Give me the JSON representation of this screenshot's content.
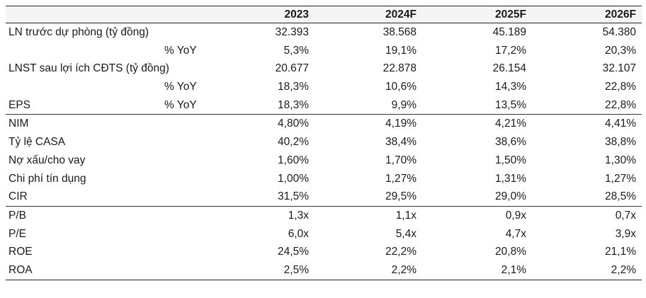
{
  "table": {
    "headers": [
      "2023",
      "2024F",
      "2025F",
      "2026F"
    ],
    "rows": [
      {
        "label": "LN trước dự phòng (tỷ đồng)",
        "sub": "",
        "values": [
          "32.393",
          "38.568",
          "45.189",
          "54.380"
        ]
      },
      {
        "label": "",
        "sub": "% YoY",
        "values": [
          "5,3%",
          "19,1%",
          "17,2%",
          "20,3%"
        ]
      },
      {
        "label": "LNST sau lợi ích CĐTS (tỷ đồng)",
        "sub": "",
        "values": [
          "20.677",
          "22.878",
          "26.154",
          "32.107"
        ]
      },
      {
        "label": "",
        "sub": "% YoY",
        "values": [
          "18,3%",
          "10,6%",
          "14,3%",
          "22,8%"
        ]
      },
      {
        "label": "EPS",
        "sub": "% YoY",
        "values": [
          "18,3%",
          "9,9%",
          "13,5%",
          "22,8%"
        ]
      },
      {
        "label": "NIM",
        "sub": "",
        "values": [
          "4,80%",
          "4,19%",
          "4,21%",
          "4,41%"
        ]
      },
      {
        "label": "Tỷ lệ CASA",
        "sub": "",
        "values": [
          "40,2%",
          "38,4%",
          "38,6%",
          "38,8%"
        ]
      },
      {
        "label": "Nợ xấu/cho vay",
        "sub": "",
        "values": [
          "1,60%",
          "1,70%",
          "1,50%",
          "1,30%"
        ]
      },
      {
        "label": "Chi phí tín dụng",
        "sub": "",
        "values": [
          "1,00%",
          "1,27%",
          "1,31%",
          "1,27%"
        ]
      },
      {
        "label": "CIR",
        "sub": "",
        "values": [
          "31,5%",
          "29,5%",
          "29,0%",
          "28,5%"
        ]
      },
      {
        "label": "P/B",
        "sub": "",
        "values": [
          "1,3x",
          "1,1x",
          "0,9x",
          "0,7x"
        ]
      },
      {
        "label": "P/E",
        "sub": "",
        "values": [
          "6,0x",
          "5,4x",
          "4,7x",
          "3,9x"
        ]
      },
      {
        "label": "ROE",
        "sub": "",
        "values": [
          "24,5%",
          "22,2%",
          "20,8%",
          "21,1%"
        ]
      },
      {
        "label": "ROA",
        "sub": "",
        "values": [
          "2,5%",
          "2,2%",
          "2,1%",
          "2,2%"
        ]
      }
    ]
  }
}
